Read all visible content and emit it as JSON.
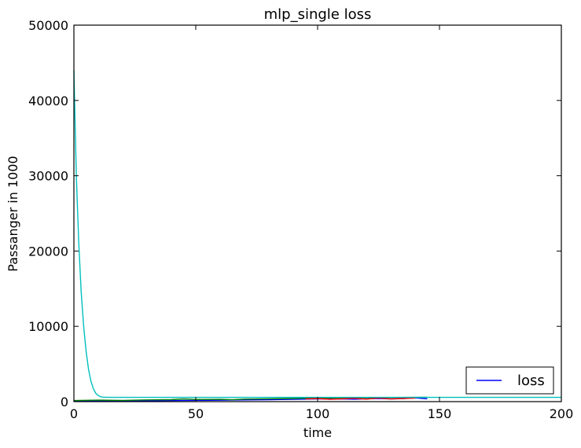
{
  "chart_data": {
    "type": "line",
    "title": "mlp_single loss",
    "xlabel": "time",
    "ylabel": "Passanger in 1000",
    "xlim": [
      0,
      200
    ],
    "ylim": [
      0,
      50000
    ],
    "xticks": [
      "0",
      "50",
      "100",
      "150",
      "200"
    ],
    "yticks": [
      "0",
      "10000",
      "20000",
      "30000",
      "40000",
      "50000"
    ],
    "grid": false,
    "legend": {
      "placement": "bottom-right",
      "entries": [
        {
          "label": "loss",
          "color": "#0000ff"
        }
      ]
    },
    "series": [
      {
        "name": "loss",
        "color": "#0000ff",
        "x": [
          0,
          10,
          20,
          30,
          40,
          50,
          60,
          70,
          80,
          90,
          95,
          100,
          105,
          110,
          115,
          120,
          125,
          130,
          135,
          140,
          145
        ],
        "y": [
          80,
          90,
          100,
          120,
          140,
          170,
          190,
          230,
          260,
          300,
          330,
          360,
          340,
          370,
          320,
          380,
          420,
          350,
          400,
          500,
          380
        ]
      },
      {
        "color": "#008000",
        "x": [
          0,
          10,
          20,
          30,
          40,
          45,
          50,
          60,
          65,
          70,
          80,
          90,
          95,
          100,
          110,
          120,
          130,
          140,
          145
        ],
        "y": [
          150,
          200,
          170,
          230,
          260,
          350,
          280,
          300,
          250,
          330,
          380,
          420,
          450,
          480,
          500,
          520,
          540,
          560,
          580
        ]
      },
      {
        "color": "#ff0000",
        "x": [
          95,
          100,
          105,
          110,
          115,
          120,
          125,
          130,
          135,
          140
        ],
        "y": [
          350,
          420,
          300,
          380,
          450,
          330,
          480,
          360,
          420,
          470
        ]
      },
      {
        "color": "#00bfbf",
        "x": [
          0,
          1,
          2,
          3,
          4,
          5,
          6,
          7,
          8,
          9,
          10,
          11,
          12,
          15,
          20,
          50,
          100,
          150,
          200
        ],
        "y": [
          44000,
          30000,
          21000,
          14500,
          10000,
          6700,
          4300,
          2700,
          1700,
          1100,
          800,
          650,
          600,
          560,
          560,
          560,
          560,
          560,
          560
        ]
      }
    ]
  }
}
